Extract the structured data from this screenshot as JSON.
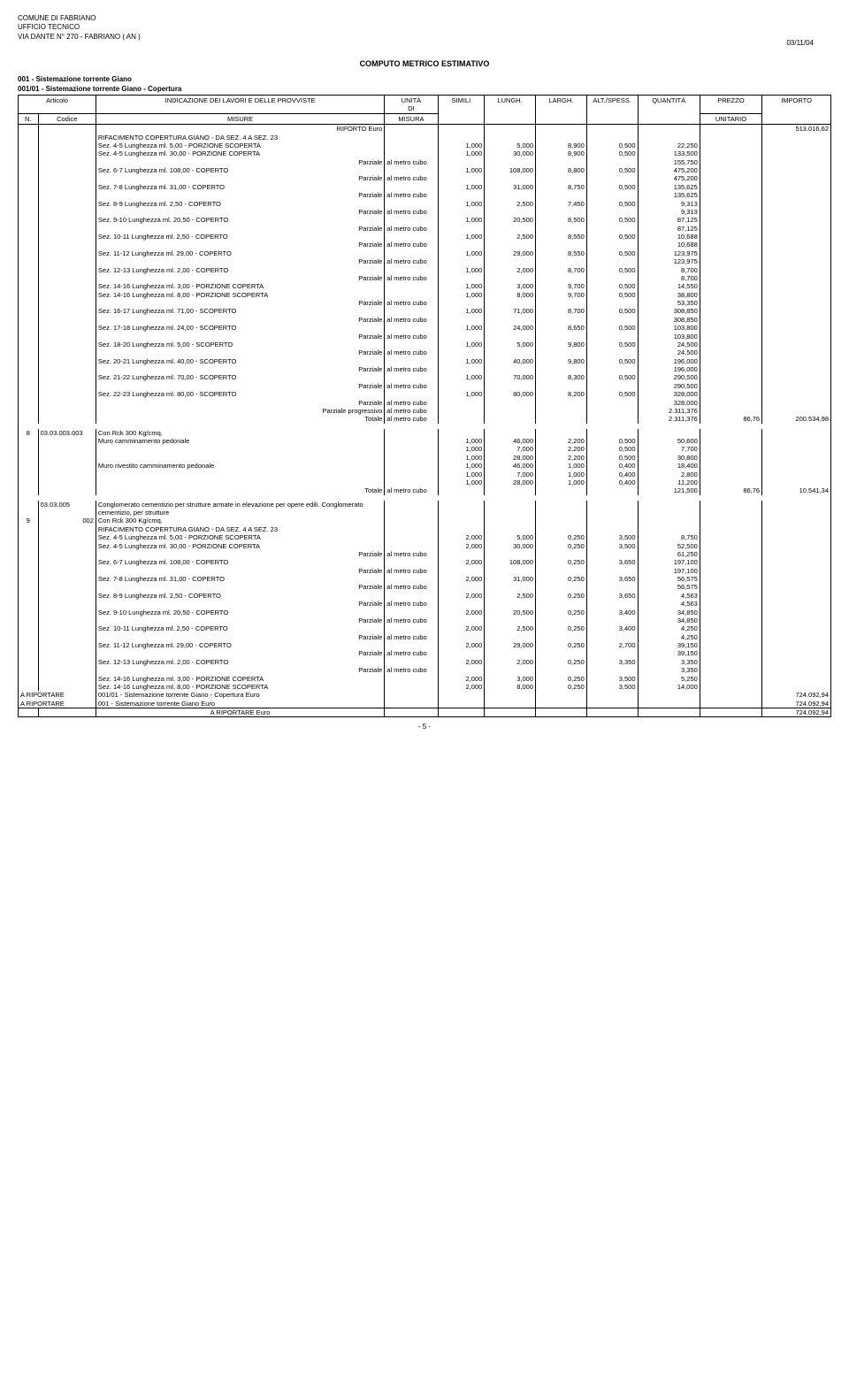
{
  "header": {
    "org": "COMUNE DI FABRIANO",
    "dept": "UFFICIO TECNICO",
    "addr": "VIA DANTE N° 270 - FABRIANO ( AN )",
    "date": "03/11/04"
  },
  "doc_title": "COMPUTO METRICO ESTIMATIVO",
  "subtitle1": "001 - Sistemazione torrente Giano",
  "subtitle2": "001/01 - Sistemazione torrente Giano - Copertura",
  "columns": {
    "articolo": "Articolo",
    "n": "N.",
    "codice": "Codice",
    "indicazione": "INDICAZIONE DEI LAVORI E DELLE PROVVISTE",
    "misure": "MISURE",
    "unita_di_misura_top": "UNITÀ",
    "unita_di_misura_mid": "DI",
    "unita_di_misura_bot": "MISURA",
    "simili": "SIMILI",
    "lungh": "LUNGH.",
    "largh": "LARGH.",
    "alt": "ALT./SPESS.",
    "quantita": "QUANTITÀ",
    "prezzo": "PREZZO",
    "unitario": "UNITARIO",
    "importo": "IMPORTO"
  },
  "labels": {
    "riporto": "RIPORTO Euro",
    "parziale": "Parziale",
    "parziale_progressivo": "Parziale progressivo",
    "totale": "Totale",
    "al_metro_cubo": "al metro cubo",
    "a_riportare": "A RIPORTARE",
    "line1": "001/01 - Sistemazione torrente Giano - Copertura Euro",
    "line2": "001 - Sistemazione torrente Giano Euro",
    "line3": "A RIPORTARE Euro"
  },
  "riporto_val": "513.016,62",
  "block1_title": "RIFACIMENTO COPERTURA GIANO - DA SEZ. 4 A SEZ. 23",
  "rows1": [
    {
      "d": "Sez. 4-5 Lunghezza ml. 5,00 - PORZIONE SCOPERTA",
      "s": "1,000",
      "l": "5,000",
      "g": "8,900",
      "a": "0,500",
      "q": "22,250"
    },
    {
      "d": "Sez. 4-5 Lunghezza ml. 30,00 - PORZIONE COPERTA",
      "s": "1,000",
      "l": "30,000",
      "g": "8,900",
      "a": "0,500",
      "q": "133,500"
    },
    {
      "parz": "155,750"
    },
    {
      "d": "Sez. 6-7 Lunghezza ml. 108,00 - COPERTO",
      "s": "1,000",
      "l": "108,000",
      "g": "8,800",
      "a": "0,500",
      "q": "475,200"
    },
    {
      "parz": "475,200"
    },
    {
      "d": "Sez. 7-8 Lunghezza ml. 31,00 - COPERTO",
      "s": "1,000",
      "l": "31,000",
      "g": "8,750",
      "a": "0,500",
      "q": "135,625"
    },
    {
      "parz": "135,625"
    },
    {
      "d": "Sez. 8-9 Lunghezza ml. 2,50 - COPERTO",
      "s": "1,000",
      "l": "2,500",
      "g": "7,450",
      "a": "0,500",
      "q": "9,313"
    },
    {
      "parz": "9,313"
    },
    {
      "d": "Sez. 9-10 Lunghezza ml. 20,50 - COPERTO",
      "s": "1,000",
      "l": "20,500",
      "g": "8,500",
      "a": "0,500",
      "q": "87,125"
    },
    {
      "parz": "87,125"
    },
    {
      "d": "Sez. 10-11 Lunghezza ml. 2,50 - COPERTO",
      "s": "1,000",
      "l": "2,500",
      "g": "8,550",
      "a": "0,500",
      "q": "10,688"
    },
    {
      "parz": "10,688"
    },
    {
      "d": "Sez. 11-12 Lunghezza ml. 29,00 - COPERTO",
      "s": "1,000",
      "l": "29,000",
      "g": "8,550",
      "a": "0,500",
      "q": "123,975"
    },
    {
      "parz": "123,975"
    },
    {
      "d": "Sez. 12-13 Lunghezza ml. 2,00 - COPERTO",
      "s": "1,000",
      "l": "2,000",
      "g": "8,700",
      "a": "0,500",
      "q": "8,700"
    },
    {
      "parz": "8,700"
    },
    {
      "d": "Sez. 14-16 Lunghezza ml. 3,00 - PORZIONE COPERTA",
      "s": "1,000",
      "l": "3,000",
      "g": "9,700",
      "a": "0,500",
      "q": "14,550"
    },
    {
      "d": "Sez. 14-16 Lunghezza ml. 8,00 - PORZIONE SCOPERTA",
      "s": "1,000",
      "l": "8,000",
      "g": "9,700",
      "a": "0,500",
      "q": "38,800"
    },
    {
      "parz": "53,350"
    },
    {
      "d": "Sez. 16-17 Lunghezza ml. 71,00 - SCOPERTO",
      "s": "1,000",
      "l": "71,000",
      "g": "8,700",
      "a": "0,500",
      "q": "308,850"
    },
    {
      "parz": "308,850"
    },
    {
      "d": "Sez. 17-18 Lunghezza ml. 24,00 - SCOPERTO",
      "s": "1,000",
      "l": "24,000",
      "g": "8,650",
      "a": "0,500",
      "q": "103,800"
    },
    {
      "parz": "103,800"
    },
    {
      "d": "Sez. 18-20 Lunghezza ml. 5,00 - SCOPERTO",
      "s": "1,000",
      "l": "5,000",
      "g": "9,800",
      "a": "0,500",
      "q": "24,500"
    },
    {
      "parz": "24,500"
    },
    {
      "d": "Sez. 20-21 Lunghezza ml. 40,00 - SCOPERTO",
      "s": "1,000",
      "l": "40,000",
      "g": "9,800",
      "a": "0,500",
      "q": "196,000"
    },
    {
      "parz": "196,000"
    },
    {
      "d": "Sez. 21-22 Lunghezza ml. 70,00 - SCOPERTO",
      "s": "1,000",
      "l": "70,000",
      "g": "8,300",
      "a": "0,500",
      "q": "290,500"
    },
    {
      "parz": "290,500"
    },
    {
      "d": "Sez. 22-23 Lunghezza ml. 80,00 - SCOPERTO",
      "s": "1,000",
      "l": "80,000",
      "g": "8,200",
      "a": "0,500",
      "q": "328,000"
    },
    {
      "parz": "328,000"
    }
  ],
  "parz_prog1": "2.311,376",
  "totale1": {
    "q": "2.311,376",
    "pu": "86,76",
    "imp": "200.534,98"
  },
  "item8": {
    "n": "8",
    "cod": "03.03.003.003",
    "desc": "Con Rck 300 Kg/cmq.",
    "sub": [
      {
        "d": "Muro camminamento pedonale",
        "s": "1,000",
        "l": "46,000",
        "g": "2,200",
        "a": "0,500",
        "q": "50,600"
      },
      {
        "d": "",
        "s": "1,000",
        "l": "7,000",
        "g": "2,200",
        "a": "0,500",
        "q": "7,700"
      },
      {
        "d": "",
        "s": "1,000",
        "l": "28,000",
        "g": "2,200",
        "a": "0,500",
        "q": "30,800"
      },
      {
        "d": "Muro rivestito camminamento pedonale",
        "s": "1,000",
        "l": "46,000",
        "g": "1,000",
        "a": "0,400",
        "q": "18,400"
      },
      {
        "d": "",
        "s": "1,000",
        "l": "7,000",
        "g": "1,000",
        "a": "0,400",
        "q": "2,800"
      },
      {
        "d": "",
        "s": "1,000",
        "l": "28,000",
        "g": "1,000",
        "a": "0,400",
        "q": "11,200"
      }
    ],
    "tot": {
      "q": "121,500",
      "pu": "86,76",
      "imp": "10.541,34"
    }
  },
  "item9": {
    "n": "9",
    "cod_pre": "03.03.005",
    "desc_pre": "Conglomerato cementizio per strutture armate in elevazione per opere edili. Conglomerato cementizio, per strutture",
    "cod": "002",
    "desc": "Con Rck 300 Kg/cmq.",
    "title": "RIFACIMENTO COPERTURA GIANO - DA SEZ. 4 A SEZ. 23",
    "rows": [
      {
        "d": "Sez. 4-5 Lunghezza ml. 5,00 - PORZIONE SCOPERTA",
        "s": "2,000",
        "l": "5,000",
        "g": "0,250",
        "a": "3,500",
        "q": "8,750"
      },
      {
        "d": "Sez. 4-5 Lunghezza ml. 30,00 - PORZIONE COPERTA",
        "s": "2,000",
        "l": "30,000",
        "g": "0,250",
        "a": "3,500",
        "q": "52,500"
      },
      {
        "parz": "61,250"
      },
      {
        "d": "Sez. 6-7 Lunghezza ml. 108,00 - COPERTO",
        "s": "2,000",
        "l": "108,000",
        "g": "0,250",
        "a": "3,650",
        "q": "197,100"
      },
      {
        "parz": "197,100"
      },
      {
        "d": "Sez. 7-8 Lunghezza ml. 31,00 - COPERTO",
        "s": "2,000",
        "l": "31,000",
        "g": "0,250",
        "a": "3,650",
        "q": "56,575"
      },
      {
        "parz": "56,575"
      },
      {
        "d": "Sez. 8-9 Lunghezza ml. 2,50 - COPERTO",
        "s": "2,000",
        "l": "2,500",
        "g": "0,250",
        "a": "3,650",
        "q": "4,563"
      },
      {
        "parz": "4,563"
      },
      {
        "d": "Sez. 9-10 Lunghezza ml. 20,50 - COPERTO",
        "s": "2,000",
        "l": "20,500",
        "g": "0,250",
        "a": "3,400",
        "q": "34,850"
      },
      {
        "parz": "34,850"
      },
      {
        "d": "Sez. 10-11 Lunghezza ml. 2,50 - COPERTO",
        "s": "2,000",
        "l": "2,500",
        "g": "0,250",
        "a": "3,400",
        "q": "4,250"
      },
      {
        "parz": "4,250"
      },
      {
        "d": "Sez. 11-12 Lunghezza ml. 29,00 - COPERTO",
        "s": "2,000",
        "l": "29,000",
        "g": "0,250",
        "a": "2,700",
        "q": "39,150"
      },
      {
        "parz": "39,150"
      },
      {
        "d": "Sez. 12-13 Lunghezza ml. 2,00 - COPERTO",
        "s": "2,000",
        "l": "2,000",
        "g": "0,250",
        "a": "3,350",
        "q": "3,350"
      },
      {
        "parz": "3,350"
      },
      {
        "d": "Sez. 14-16 Lunghezza ml. 3,00 - PORZIONE COPERTA",
        "s": "2,000",
        "l": "3,000",
        "g": "0,250",
        "a": "3,500",
        "q": "5,250"
      },
      {
        "d": "Sez. 14-16 Lunghezza ml. 8,00 - PORZIONE SCOPERTA",
        "s": "2,000",
        "l": "8,000",
        "g": "0,250",
        "a": "3,500",
        "q": "14,000"
      }
    ]
  },
  "footer_vals": {
    "v": "724.092,94"
  },
  "page_num": "- 5 -"
}
